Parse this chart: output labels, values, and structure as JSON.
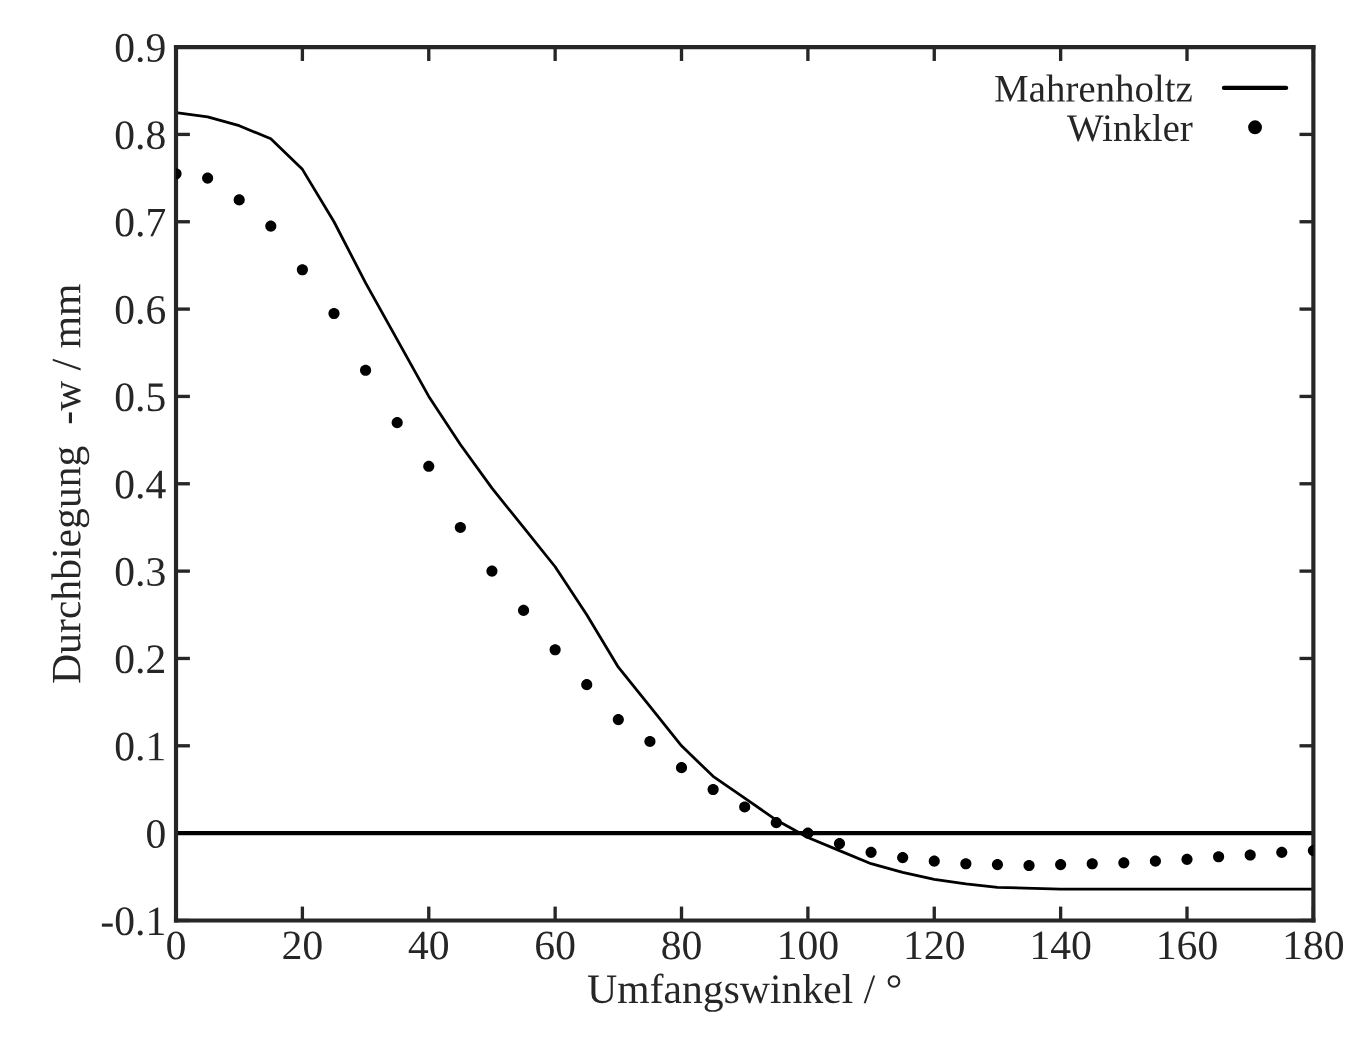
{
  "chart_data": {
    "type": "line",
    "xlabel": "Umfangswinkel / °",
    "ylabel": "Durchbiegung  -w / mm",
    "xlim": [
      0,
      180
    ],
    "xticks": [
      0,
      20,
      40,
      60,
      80,
      100,
      120,
      140,
      160,
      180
    ],
    "ylim": [
      -0.1,
      0.9
    ],
    "yticks": [
      -0.1,
      0,
      0.1,
      0.2,
      0.3,
      0.4,
      0.5,
      0.6,
      0.7,
      0.8,
      0.9
    ],
    "legend": "top right",
    "grid": false,
    "ref_lines": [
      {
        "axis": "y",
        "value": 0,
        "color": "#000000",
        "line_style": "solid"
      }
    ],
    "series": [
      {
        "name": "Mahrenholtz",
        "color": "#000000",
        "marker": "none",
        "line_style": "solid",
        "x": [
          0,
          5,
          10,
          15,
          20,
          25,
          30,
          35,
          40,
          45,
          50,
          55,
          60,
          65,
          70,
          75,
          80,
          85,
          90,
          95,
          100,
          105,
          110,
          115,
          120,
          125,
          130,
          140,
          150,
          160,
          170,
          180
        ],
        "values": [
          0.825,
          0.82,
          0.81,
          0.795,
          0.76,
          0.7,
          0.63,
          0.565,
          0.5,
          0.445,
          0.395,
          0.35,
          0.305,
          0.25,
          0.19,
          0.145,
          0.1,
          0.065,
          0.04,
          0.015,
          -0.005,
          -0.02,
          -0.035,
          -0.045,
          -0.053,
          -0.058,
          -0.062,
          -0.064,
          -0.064,
          -0.064,
          -0.064,
          -0.064
        ]
      },
      {
        "name": "Winkler",
        "type": "scatter",
        "color": "#000000",
        "marker": "circle",
        "x": [
          0,
          5,
          10,
          15,
          20,
          25,
          30,
          35,
          40,
          45,
          50,
          55,
          60,
          65,
          70,
          75,
          80,
          85,
          90,
          95,
          100,
          105,
          110,
          115,
          120,
          125,
          130,
          135,
          140,
          145,
          150,
          155,
          160,
          165,
          170,
          175,
          180
        ],
        "values": [
          0.755,
          0.75,
          0.725,
          0.695,
          0.645,
          0.595,
          0.53,
          0.47,
          0.42,
          0.35,
          0.3,
          0.255,
          0.21,
          0.17,
          0.13,
          0.105,
          0.075,
          0.05,
          0.03,
          0.012,
          0,
          -0.012,
          -0.022,
          -0.028,
          -0.032,
          -0.035,
          -0.036,
          -0.037,
          -0.036,
          -0.035,
          -0.034,
          -0.032,
          -0.03,
          -0.027,
          -0.025,
          -0.022,
          -0.02
        ]
      }
    ]
  }
}
